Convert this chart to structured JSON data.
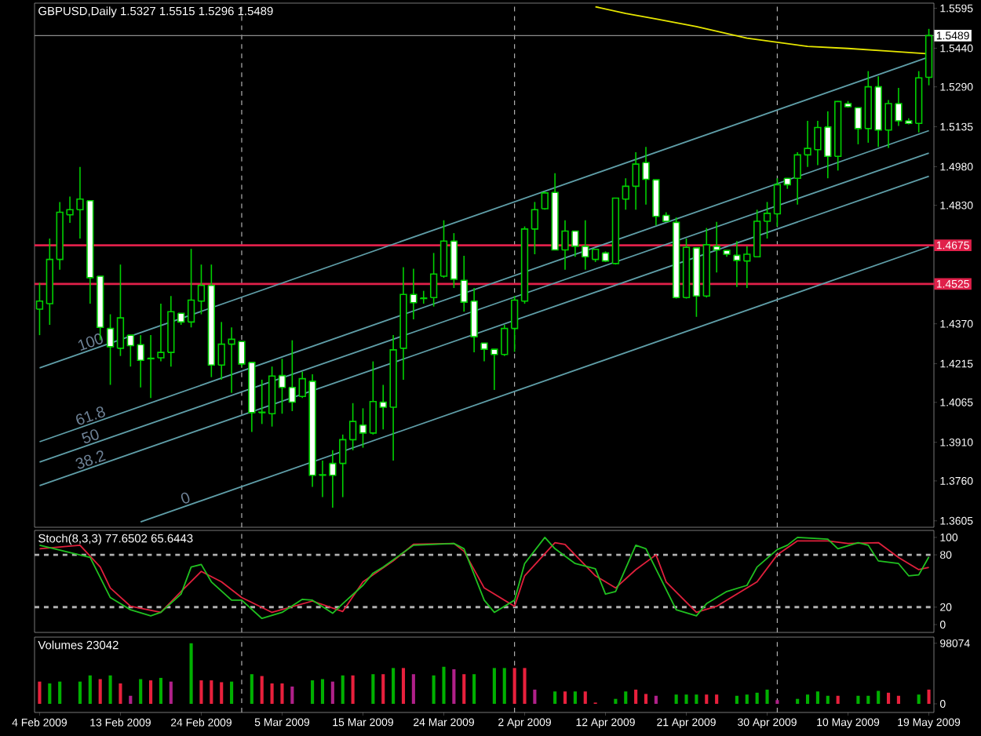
{
  "chart_data": [
    {
      "type": "candlestick",
      "title": "GBPUSD,Daily 1.5327 1.5515 1.5296 1.5489",
      "categories": [
        null,
        null,
        null,
        null,
        null,
        null,
        null,
        null,
        null,
        null,
        null,
        null,
        null,
        null,
        null,
        null,
        null,
        null,
        null,
        null,
        null,
        null,
        null,
        null,
        null,
        null,
        null,
        null,
        null,
        null,
        null,
        null,
        null,
        null,
        null,
        null,
        null,
        null,
        null,
        null,
        null,
        null,
        null,
        null,
        null,
        null,
        null,
        null,
        null,
        null,
        null,
        null,
        null,
        null,
        null,
        null,
        null,
        null,
        null,
        null,
        null,
        null,
        null,
        null,
        null,
        null,
        null,
        null,
        null,
        null,
        null,
        null,
        null,
        null,
        null,
        null,
        null,
        null,
        null,
        null,
        null,
        null,
        null,
        null,
        null,
        null,
        null,
        null,
        null
      ],
      "ohlc": [
        [
          1.4427,
          1.4529,
          1.4326,
          1.4458
        ],
        [
          1.4448,
          1.4701,
          1.4366,
          1.462
        ],
        [
          1.462,
          1.4843,
          1.458,
          1.4803
        ],
        [
          1.4793,
          1.4864,
          1.4762,
          1.4813
        ],
        [
          1.4813,
          1.4979,
          1.4701,
          1.4854
        ],
        [
          1.4848,
          1.4848,
          1.4448,
          1.4549
        ],
        [
          1.4555,
          1.4555,
          1.4306,
          1.4356
        ],
        [
          1.4352,
          1.4407,
          1.4133,
          1.4281
        ],
        [
          1.4275,
          1.46,
          1.4245,
          1.4393
        ],
        [
          1.4326,
          1.4326,
          1.4204,
          1.4285
        ],
        [
          1.4289,
          1.4326,
          1.4123,
          1.4228
        ],
        [
          1.4236,
          1.4326,
          1.4082,
          1.4234
        ],
        [
          1.4238,
          1.4448,
          1.4224,
          1.4259
        ],
        [
          1.4259,
          1.4478,
          1.4204,
          1.4417
        ],
        [
          1.4411,
          1.4411,
          1.4366,
          1.4377
        ],
        [
          1.4377,
          1.4661,
          1.4356,
          1.4462
        ],
        [
          1.4458,
          1.46,
          1.4407,
          1.4519
        ],
        [
          1.4519,
          1.46,
          1.4163,
          1.421
        ],
        [
          1.421,
          1.4377,
          1.4153,
          1.4291
        ],
        [
          1.4291,
          1.4356,
          1.4102,
          1.431
        ],
        [
          1.4301,
          1.4301,
          1.4204,
          1.4214
        ],
        [
          1.422,
          1.422,
          1.395,
          1.4025
        ],
        [
          1.4025,
          1.4153,
          1.3981,
          1.4027
        ],
        [
          1.4021,
          1.4204,
          1.3971,
          1.4167
        ],
        [
          1.4169,
          1.4234,
          1.4021,
          1.4123
        ],
        [
          1.4123,
          1.4306,
          1.4031,
          1.4066
        ],
        [
          1.4088,
          1.4184,
          1.4082,
          1.4157
        ],
        [
          1.4147,
          1.4174,
          1.3737,
          1.3782
        ],
        [
          1.3782,
          1.3839,
          1.3697,
          1.3784
        ],
        [
          1.3828,
          1.3879,
          1.3656,
          1.3782
        ],
        [
          1.3828,
          1.394,
          1.3697,
          1.392
        ],
        [
          1.392,
          1.4062,
          1.3879,
          1.3991
        ],
        [
          1.3977,
          1.4042,
          1.3889,
          1.3946
        ],
        [
          1.3946,
          1.4224,
          1.394,
          1.4068
        ],
        [
          1.4066,
          1.4133,
          1.396,
          1.4046
        ],
        [
          1.4046,
          1.4326,
          1.3839,
          1.4269
        ],
        [
          1.4275,
          1.459,
          1.4153,
          1.4484
        ],
        [
          1.4484,
          1.4584,
          1.4387,
          1.4452
        ],
        [
          1.447,
          1.4498,
          1.4448,
          1.4468
        ],
        [
          1.4472,
          1.4645,
          1.4437,
          1.4563
        ],
        [
          1.4555,
          1.4772,
          1.4549,
          1.4691
        ],
        [
          1.4691,
          1.4722,
          1.4509,
          1.4543
        ],
        [
          1.4539,
          1.4634,
          1.4417,
          1.4454
        ],
        [
          1.4458,
          1.4509,
          1.4259,
          1.432
        ],
        [
          1.4295,
          1.4295,
          1.4224,
          1.4271
        ],
        [
          1.4271,
          1.4271,
          1.4113,
          1.4251
        ],
        [
          1.4251,
          1.4366,
          1.4245,
          1.4352
        ],
        [
          1.4352,
          1.4478,
          1.4261,
          1.4462
        ],
        [
          1.4458,
          1.4748,
          1.4448,
          1.4738
        ],
        [
          1.4738,
          1.4843,
          1.464,
          1.4813
        ],
        [
          1.4817,
          1.4884,
          1.4813,
          1.4878
        ],
        [
          1.488,
          1.4955,
          1.4655,
          1.4657
        ],
        [
          1.4657,
          1.4772,
          1.458,
          1.473
        ],
        [
          1.473,
          1.473,
          1.463,
          1.4671
        ],
        [
          1.4671,
          1.4772,
          1.458,
          1.463
        ],
        [
          1.462,
          1.4659,
          1.461,
          1.4659
        ],
        [
          1.4645,
          1.4651,
          1.461,
          1.4614
        ],
        [
          1.4604,
          1.4858,
          1.46,
          1.4858
        ],
        [
          1.4854,
          1.4935,
          1.4813,
          1.4904
        ],
        [
          1.4904,
          1.5036,
          1.4813,
          1.499
        ],
        [
          1.4996,
          1.5057,
          1.4833,
          1.4931
        ],
        [
          1.4929,
          1.4929,
          1.4752,
          1.4787
        ],
        [
          1.4791,
          1.4803,
          1.4768,
          1.4768
        ],
        [
          1.4764,
          1.4783,
          1.4468,
          1.4472
        ],
        [
          1.4472,
          1.4701,
          1.4468,
          1.4667
        ],
        [
          1.4665,
          1.4665,
          1.4397,
          1.4478
        ],
        [
          1.4478,
          1.4742,
          1.4472,
          1.4677
        ],
        [
          1.4671,
          1.4766,
          1.4569,
          1.4657
        ],
        [
          1.4655,
          1.4655,
          1.463,
          1.464
        ],
        [
          1.4636,
          1.4691,
          1.4513,
          1.4616
        ],
        [
          1.4614,
          1.4671,
          1.4509,
          1.464
        ],
        [
          1.463,
          1.4813,
          1.463,
          1.4768
        ],
        [
          1.4768,
          1.4843,
          1.4701,
          1.4799
        ],
        [
          1.4797,
          1.4935,
          1.4748,
          1.491
        ],
        [
          1.4935,
          1.4935,
          1.4894,
          1.491
        ],
        [
          1.4935,
          1.5036,
          1.4833,
          1.5026
        ],
        [
          1.5026,
          1.5158,
          1.4979,
          1.5051
        ],
        [
          1.5046,
          1.5158,
          1.4986,
          1.5132
        ],
        [
          1.5134,
          1.5195,
          1.4935,
          1.502
        ],
        [
          1.502,
          1.5235,
          1.4965,
          1.5233
        ],
        [
          1.5225,
          1.5235,
          1.5209,
          1.5213
        ],
        [
          1.5209,
          1.5209,
          1.5067,
          1.5128
        ],
        [
          1.5128,
          1.5351,
          1.5073,
          1.529
        ],
        [
          1.529,
          1.5331,
          1.5057,
          1.5122
        ],
        [
          1.5122,
          1.5239,
          1.5053,
          1.5225
        ],
        [
          1.5225,
          1.5286,
          1.5138,
          1.5158
        ],
        [
          1.5158,
          1.5168,
          1.5144,
          1.5148
        ],
        [
          1.5148,
          1.5351,
          1.5113,
          1.5325
        ],
        [
          1.5327,
          1.5515,
          1.5296,
          1.5489
        ]
      ],
      "ylim": [
        1.358,
        1.5615
      ],
      "yticks": [
        {
          "value": 1.5595,
          "label": "1.5595"
        },
        {
          "value": 1.544,
          "label": "1.5440"
        },
        {
          "value": 1.529,
          "label": "1.5290"
        },
        {
          "value": 1.5135,
          "label": "1.5135"
        },
        {
          "value": 1.498,
          "label": "1.4980"
        },
        {
          "value": 1.483,
          "label": "1.4830"
        },
        {
          "value": 1.4675,
          "label": null
        },
        {
          "value": 1.4525,
          "label": null
        },
        {
          "value": 1.437,
          "label": "1.4370"
        },
        {
          "value": 1.4215,
          "label": "1.4215"
        },
        {
          "value": 1.4065,
          "label": "1.4065"
        },
        {
          "value": 1.391,
          "label": "1.3910"
        },
        {
          "value": 1.376,
          "label": "1.3760"
        },
        {
          "value": 1.3605,
          "label": "1.3605"
        }
      ],
      "tick_labels": "y",
      "grid": "x",
      "series": [
        {
          "type": "line",
          "color": "#e6e600",
          "values": [
            null,
            null,
            null,
            null,
            null,
            null,
            null,
            null,
            null,
            null,
            null,
            null,
            null,
            null,
            null,
            null,
            null,
            null,
            null,
            null,
            null,
            null,
            null,
            null,
            null,
            null,
            null,
            null,
            null,
            null,
            null,
            null,
            null,
            null,
            null,
            null,
            null,
            null,
            null,
            null,
            null,
            null,
            null,
            null,
            null,
            null,
            null,
            null,
            null,
            null,
            null,
            null,
            null,
            null,
            null,
            1.5601,
            null,
            null,
            1.5575,
            null,
            null,
            1.5554,
            null,
            null,
            null,
            1.5524,
            null,
            null,
            null,
            null,
            1.5479,
            null,
            null,
            1.5463,
            null,
            null,
            1.5447,
            null,
            null,
            null,
            1.5439,
            null,
            null,
            null,
            1.5429,
            null,
            null,
            null,
            1.5418
          ]
        },
        {
          "type": "line",
          "name": "100",
          "color": "#5f9ea8",
          "values": [
            1.4199,
            null,
            null,
            null,
            null,
            null,
            null,
            null,
            null,
            null,
            null,
            null,
            null,
            null,
            null,
            null,
            null,
            null,
            null,
            null,
            null,
            null,
            null,
            null,
            null,
            null,
            null,
            null,
            null,
            null,
            null,
            null,
            null,
            null,
            null,
            null,
            null,
            null,
            null,
            null,
            null,
            null,
            null,
            null,
            null,
            null,
            null,
            null,
            null,
            null,
            null,
            null,
            null,
            null,
            null,
            null,
            null,
            null,
            null,
            null,
            null,
            null,
            null,
            null,
            null,
            null,
            null,
            null,
            null,
            null,
            null,
            null,
            null,
            null,
            null,
            null,
            null,
            null,
            null,
            null,
            null,
            null,
            null,
            null,
            null,
            null,
            null,
            null,
            1.5406
          ]
        },
        {
          "type": "line",
          "name": "61.8",
          "color": "#5f9ea8",
          "values": [
            1.3912,
            null,
            null,
            null,
            null,
            null,
            null,
            null,
            null,
            null,
            null,
            null,
            null,
            null,
            null,
            null,
            null,
            null,
            null,
            null,
            null,
            null,
            null,
            null,
            null,
            null,
            null,
            null,
            null,
            null,
            null,
            null,
            null,
            null,
            null,
            null,
            null,
            null,
            null,
            null,
            null,
            null,
            null,
            null,
            null,
            null,
            null,
            null,
            null,
            null,
            null,
            null,
            null,
            null,
            null,
            null,
            null,
            null,
            null,
            null,
            null,
            null,
            null,
            null,
            null,
            null,
            null,
            null,
            null,
            null,
            null,
            null,
            null,
            null,
            null,
            null,
            null,
            null,
            null,
            null,
            null,
            null,
            null,
            null,
            null,
            null,
            null,
            null,
            1.512
          ]
        },
        {
          "type": "line",
          "name": "50",
          "color": "#5f9ea8",
          "values": [
            1.3833,
            null,
            null,
            null,
            null,
            null,
            null,
            null,
            null,
            null,
            null,
            null,
            null,
            null,
            null,
            null,
            null,
            null,
            null,
            null,
            null,
            null,
            null,
            null,
            null,
            null,
            null,
            null,
            null,
            null,
            null,
            null,
            null,
            null,
            null,
            null,
            null,
            null,
            null,
            null,
            null,
            null,
            null,
            null,
            null,
            null,
            null,
            null,
            null,
            null,
            null,
            null,
            null,
            null,
            null,
            null,
            null,
            null,
            null,
            null,
            null,
            null,
            null,
            null,
            null,
            null,
            null,
            null,
            null,
            null,
            null,
            null,
            null,
            null,
            null,
            null,
            null,
            null,
            null,
            null,
            null,
            null,
            null,
            null,
            null,
            null,
            null,
            null,
            1.5033
          ]
        },
        {
          "type": "line",
          "name": "38.2",
          "color": "#5f9ea8",
          "values": [
            1.3742,
            null,
            null,
            null,
            null,
            null,
            null,
            null,
            null,
            null,
            null,
            null,
            null,
            null,
            null,
            null,
            null,
            null,
            null,
            null,
            null,
            null,
            null,
            null,
            null,
            null,
            null,
            null,
            null,
            null,
            null,
            null,
            null,
            null,
            null,
            null,
            null,
            null,
            null,
            null,
            null,
            null,
            null,
            null,
            null,
            null,
            null,
            null,
            null,
            null,
            null,
            null,
            null,
            null,
            null,
            null,
            null,
            null,
            null,
            null,
            null,
            null,
            null,
            null,
            null,
            null,
            null,
            null,
            null,
            null,
            null,
            null,
            null,
            null,
            null,
            null,
            null,
            null,
            null,
            null,
            null,
            null,
            null,
            null,
            null,
            null,
            null,
            null,
            1.4943
          ]
        },
        {
          "type": "line",
          "name": "0",
          "color": "#5f9ea8",
          "values": [
            null,
            null,
            null,
            null,
            null,
            null,
            null,
            null,
            null,
            null,
            1.3601,
            null,
            null,
            null,
            null,
            null,
            null,
            null,
            null,
            null,
            null,
            null,
            null,
            null,
            null,
            null,
            null,
            null,
            null,
            null,
            null,
            null,
            null,
            null,
            null,
            null,
            null,
            null,
            null,
            null,
            null,
            null,
            null,
            null,
            null,
            null,
            null,
            null,
            null,
            null,
            null,
            null,
            null,
            null,
            null,
            null,
            null,
            null,
            null,
            null,
            null,
            null,
            null,
            null,
            null,
            null,
            null,
            null,
            null,
            null,
            null,
            null,
            null,
            null,
            null,
            null,
            null,
            null,
            null,
            null,
            null,
            null,
            null,
            null,
            null,
            null,
            null,
            null,
            1.4669
          ]
        }
      ],
      "ref_lines": [
        {
          "axis": "y",
          "value": 1.5489,
          "label": "1.5489",
          "color": "#8c8c8c"
        },
        {
          "axis": "y",
          "value": 1.4675,
          "label": "1.4675",
          "color": "#e0204a"
        },
        {
          "axis": "y",
          "value": 1.4525,
          "label": "1.4525",
          "color": "#e0204a"
        }
      ]
    },
    {
      "type": "line",
      "title": "Stoch(8,3,3) 77.6502 65.6443",
      "categories": [
        null,
        null,
        null,
        null,
        null,
        null,
        null,
        null,
        null,
        null,
        null,
        null,
        null,
        null,
        null,
        null,
        null,
        null,
        null,
        null,
        null,
        null,
        null,
        null,
        null,
        null,
        null,
        null,
        null,
        null,
        null,
        null,
        null,
        null,
        null,
        null,
        null,
        null,
        null,
        null,
        null,
        null,
        null,
        null,
        null,
        null,
        null,
        null,
        null,
        null,
        null,
        null,
        null,
        null,
        null,
        null,
        null,
        null,
        null,
        null,
        null,
        null,
        null,
        null,
        null,
        null,
        null,
        null,
        null,
        null,
        null,
        null,
        null,
        null,
        null,
        null,
        null,
        null,
        null,
        null,
        null,
        null,
        null,
        null,
        null,
        null,
        null,
        null,
        null
      ],
      "series": [
        {
          "color": "#e0203c",
          "values": [
            87,
            null,
            null,
            null,
            91,
            null,
            66,
            42,
            null,
            21,
            null,
            null,
            14,
            null,
            38,
            null,
            61,
            null,
            49,
            null,
            31,
            null,
            null,
            14,
            null,
            null,
            null,
            27,
            null,
            null,
            15,
            null,
            49,
            null,
            null,
            73,
            null,
            92,
            null,
            null,
            null,
            93,
            84,
            null,
            42,
            null,
            null,
            21,
            56,
            null,
            null,
            94,
            92,
            null,
            null,
            56,
            null,
            42,
            null,
            63,
            null,
            80,
            49,
            null,
            null,
            14,
            null,
            21,
            null,
            null,
            null,
            49,
            null,
            80,
            null,
            96,
            null,
            null,
            96,
            null,
            93,
            null,
            null,
            94,
            null,
            77,
            null,
            63,
            65.64
          ]
        },
        {
          "color": "#20c020",
          "values": [
            91,
            null,
            null,
            null,
            null,
            77,
            null,
            31,
            null,
            17,
            null,
            10,
            14,
            null,
            35,
            66,
            69,
            49,
            null,
            28,
            28,
            null,
            7,
            null,
            14,
            null,
            29,
            28,
            null,
            13,
            24,
            null,
            45,
            59,
            66,
            null,
            null,
            91,
            null,
            null,
            null,
            93,
            87,
            null,
            28,
            14,
            null,
            28,
            70,
            null,
            100,
            87,
            null,
            70,
            null,
            64,
            35,
            38,
            null,
            91,
            87,
            null,
            null,
            17,
            null,
            10,
            24,
            null,
            38,
            null,
            45,
            66,
            null,
            86,
            91,
            100,
            null,
            null,
            98,
            87,
            null,
            94,
            91,
            73,
            null,
            70,
            56,
            57,
            77.65
          ]
        }
      ],
      "ylim": [
        -9,
        108
      ],
      "yticks": [
        {
          "value": 100,
          "label": "100"
        },
        {
          "value": 80,
          "label": "80"
        },
        {
          "value": 20,
          "label": "20"
        },
        {
          "value": 0,
          "label": "0"
        }
      ],
      "tick_labels": "y",
      "grid": "x",
      "ref_lines": [
        {
          "axis": "y",
          "value": 80,
          "color": "#b0b0b0",
          "line_style": "dashed"
        },
        {
          "axis": "y",
          "value": 20,
          "color": "#b0b0b0",
          "line_style": "dashed"
        }
      ]
    },
    {
      "type": "bar",
      "title": "Volumes 23042",
      "categories": [
        "4 Feb 2009",
        null,
        null,
        null,
        null,
        null,
        null,
        null,
        "13 Feb 2009",
        null,
        null,
        null,
        null,
        null,
        null,
        null,
        "24 Feb 2009",
        null,
        null,
        null,
        null,
        null,
        null,
        null,
        "5 Mar 2009",
        null,
        null,
        null,
        null,
        null,
        null,
        null,
        "15 Mar 2009",
        null,
        null,
        null,
        null,
        null,
        null,
        null,
        "24 Mar 2009",
        null,
        null,
        null,
        null,
        null,
        null,
        null,
        "2 Apr 2009",
        null,
        null,
        null,
        null,
        null,
        null,
        null,
        "12 Apr 2009",
        null,
        null,
        null,
        null,
        null,
        null,
        null,
        "21 Apr 2009",
        null,
        null,
        null,
        null,
        null,
        null,
        null,
        "30 Apr 2009",
        null,
        null,
        null,
        null,
        null,
        null,
        null,
        "10 May 2009",
        null,
        null,
        null,
        null,
        null,
        null,
        null,
        "19 May 2009"
      ],
      "values": [
        36000,
        33000,
        36000,
        null,
        36000,
        46000,
        40000,
        46000,
        33000,
        13000,
        40000,
        38000,
        42000,
        36000,
        null,
        98074,
        38000,
        38000,
        35000,
        36000,
        null,
        48000,
        45000,
        33000,
        33000,
        28000,
        null,
        38000,
        40000,
        36000,
        46000,
        46000,
        null,
        48000,
        48000,
        58000,
        58000,
        48000,
        null,
        46000,
        60000,
        56000,
        48000,
        48000,
        null,
        58000,
        58000,
        58000,
        58000,
        23000,
        null,
        20000,
        20000,
        20000,
        20000,
        2000,
        null,
        8000,
        20000,
        23000,
        16000,
        13000,
        null,
        15000,
        15000,
        15000,
        15000,
        15000,
        null,
        13000,
        15000,
        18000,
        23000,
        6000,
        null,
        8000,
        15000,
        20000,
        13000,
        13000,
        null,
        13000,
        13000,
        21000,
        18000,
        13000,
        null,
        15000,
        23042
      ],
      "colors": [
        "#e8203c",
        "#00b000",
        "#00b000",
        "#00b000",
        "#00b000",
        "#00b000",
        "#e8203c",
        "#00b000",
        "#e8203c",
        "#b0208a",
        "#00b000",
        "#e8203c",
        "#00b000",
        "#b0208a",
        "#00b000",
        "#00b000",
        "#e8203c",
        "#e8203c",
        "#e8203c",
        "#00b000",
        "#00b000",
        "#00b000",
        "#e8203c",
        "#e8203c",
        "#e8203c",
        "#b0208a",
        "#00b000",
        "#00b000",
        "#00b000",
        "#b0208a",
        "#00b000",
        "#e8203c",
        "#00b000",
        "#00b000",
        "#e8203c",
        "#00b000",
        "#e8203c",
        "#b0208a",
        "#00b000",
        "#00b000",
        "#00b000",
        "#b0208a",
        "#e8203c",
        "#00b000",
        "#00b000",
        "#00b000",
        "#00b000",
        "#e8203c",
        "#e8203c",
        "#b0208a",
        "#00b000",
        "#00b000",
        "#e8203c",
        "#00b000",
        "#e8203c",
        "#e8203c",
        "#00b000",
        "#00b000",
        "#00b000",
        "#e8203c",
        "#e8203c",
        "#b0208a",
        "#00b000",
        "#00b000",
        "#00b000",
        "#00b000",
        "#e8203c",
        "#e8203c",
        "#00b000",
        "#00b000",
        "#00b000",
        "#00b000",
        "#00b000",
        "#b0208a",
        "#00b000",
        "#00b000",
        "#00b000",
        "#00b000",
        "#00b000",
        "#e8203c",
        "#00b000",
        "#00b000",
        "#00b000",
        "#00b000",
        "#e8203c",
        "#e8203c",
        "#00b000",
        "#00b000",
        "#e8203c"
      ],
      "ylim": [
        -14000,
        108000
      ],
      "yticks": [
        {
          "value": 98074,
          "label": "98074"
        },
        {
          "value": 0,
          "label": "0"
        }
      ],
      "grid": "x"
    }
  ]
}
